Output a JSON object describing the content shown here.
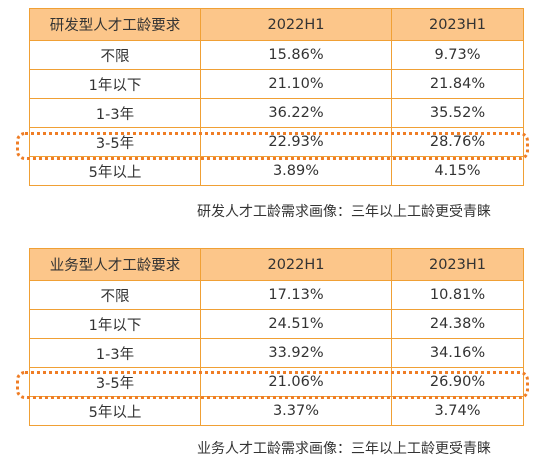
{
  "tables": [
    {
      "headers": [
        "研发型人才工龄要求",
        "2022H1",
        "2023H1"
      ],
      "rows": [
        [
          "不限",
          "15.86%",
          "9.73%"
        ],
        [
          "1年以下",
          "21.10%",
          "21.84%"
        ],
        [
          "1-3年",
          "36.22%",
          "35.52%"
        ],
        [
          "3-5年",
          "22.93%",
          "28.76%"
        ],
        [
          "5年以上",
          "3.89%",
          "4.15%"
        ]
      ],
      "caption": "研发人才工龄需求画像：三年以上工龄更受青睐",
      "highlighted_row": "3-5年"
    },
    {
      "headers": [
        "业务型人才工龄要求",
        "2022H1",
        "2023H1"
      ],
      "rows": [
        [
          "不限",
          "17.13%",
          "10.81%"
        ],
        [
          "1年以下",
          "24.51%",
          "24.38%"
        ],
        [
          "1-3年",
          "33.92%",
          "34.16%"
        ],
        [
          "3-5年",
          "21.06%",
          "26.90%"
        ],
        [
          "5年以上",
          "3.37%",
          "3.74%"
        ]
      ],
      "caption": "业务人才工龄需求画像：三年以上工龄更受青睐",
      "highlighted_row": "3-5年"
    }
  ],
  "colors": {
    "header_fill": "#fcc68a",
    "border": "#f0a035",
    "highlight_dotted": "#ef7d25",
    "text": "#333333"
  }
}
